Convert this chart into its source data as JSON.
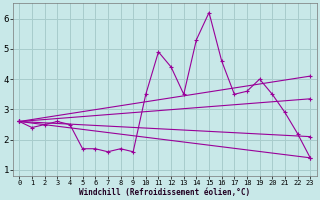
{
  "xlabel": "Windchill (Refroidissement éolien,°C)",
  "xlim": [
    -0.5,
    23.5
  ],
  "ylim": [
    0.8,
    6.5
  ],
  "yticks": [
    1,
    2,
    3,
    4,
    5,
    6
  ],
  "xticks": [
    0,
    1,
    2,
    3,
    4,
    5,
    6,
    7,
    8,
    9,
    10,
    11,
    12,
    13,
    14,
    15,
    16,
    17,
    18,
    19,
    20,
    21,
    22,
    23
  ],
  "background_color": "#c8e8e8",
  "grid_color": "#a8cccc",
  "line_color": "#990099",
  "lines": [
    {
      "x": [
        0,
        1,
        2,
        3,
        4,
        5,
        6,
        7,
        8,
        9,
        10,
        11,
        12,
        13,
        14,
        15,
        16,
        17,
        18,
        19,
        20,
        21,
        22,
        23
      ],
      "y": [
        2.6,
        2.4,
        2.5,
        2.6,
        2.5,
        1.7,
        1.7,
        1.6,
        1.7,
        1.6,
        3.5,
        4.9,
        4.4,
        3.5,
        5.3,
        6.2,
        4.6,
        3.5,
        3.6,
        4.0,
        3.5,
        2.9,
        2.2,
        1.4
      ]
    },
    {
      "x": [
        0,
        23
      ],
      "y": [
        2.6,
        4.1
      ]
    },
    {
      "x": [
        0,
        23
      ],
      "y": [
        2.6,
        3.35
      ]
    },
    {
      "x": [
        0,
        23
      ],
      "y": [
        2.6,
        2.1
      ]
    },
    {
      "x": [
        0,
        23
      ],
      "y": [
        2.6,
        1.4
      ]
    }
  ]
}
